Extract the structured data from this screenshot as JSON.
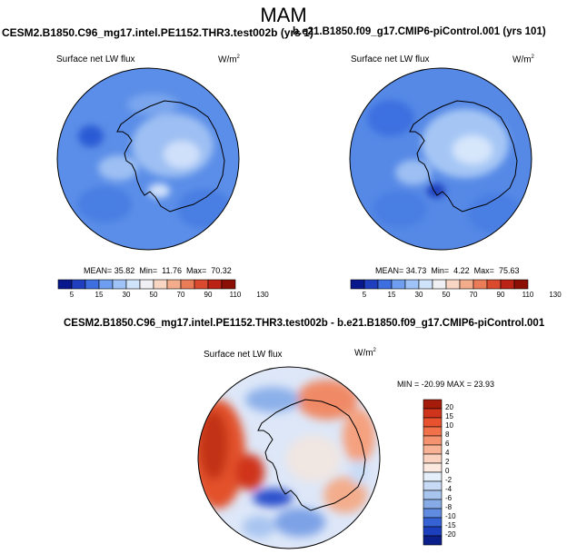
{
  "figure": {
    "season": "MAM",
    "panel_a": {
      "case": "CESM2.B1850.C96_mg17.intel.PE1152.THR3.test002b (yrs 1)",
      "variable": "Surface net LW flux",
      "units_base": "W/m",
      "units_exp": "2",
      "mean_label": "MEAN=",
      "mean": "35.82",
      "min_label": "Min=",
      "min": "11.76",
      "max_label": "Max=",
      "max": "70.32"
    },
    "panel_b": {
      "case": "b.e21.B1850.f09_g17.CMIP6-piControl.001 (yrs 101)",
      "variable": "Surface net LW flux",
      "units_base": "W/m",
      "units_exp": "2",
      "mean_label": "MEAN=",
      "mean": "34.73",
      "min_label": "Min=",
      "min": "4.22",
      "max_label": "Max=",
      "max": "75.63"
    },
    "panel_c": {
      "case": "CESM2.B1850.C96_mg17.intel.PE1152.THR3.test002b - b.e21.B1850.f09_g17.CMIP6-piControl.001",
      "variable": "Surface net LW flux",
      "units_base": "W/m",
      "units_exp": "2",
      "minmax_label": "MIN = -20.99 MAX = 23.93"
    },
    "colorbar_abs": {
      "levels": [
        "5",
        "15",
        "30",
        "50",
        "70",
        "90",
        "110",
        "130"
      ],
      "colors": [
        "#08188c",
        "#1f3fbf",
        "#3e6fe0",
        "#6f9ef0",
        "#9fc3f7",
        "#cfe3fb",
        "#f0f0f4",
        "#f8d6c3",
        "#f3ad8c",
        "#ea7c57",
        "#d94a2e",
        "#bb2414",
        "#8c0f05"
      ]
    },
    "colorbar_diff": {
      "levels": [
        "20",
        "15",
        "10",
        "8",
        "6",
        "4",
        "2",
        "0",
        "-2",
        "-4",
        "-6",
        "-8",
        "-10",
        "-15",
        "-20"
      ],
      "colors": [
        "#a51c0a",
        "#d0341c",
        "#e8522e",
        "#f1714b",
        "#f59370",
        "#f8b396",
        "#fad2bf",
        "#fbe9df",
        "#e5eefb",
        "#c8dbf6",
        "#a8c5f0",
        "#86abe7",
        "#5f8be0",
        "#3563d6",
        "#1c3fbd",
        "#0b1f8a"
      ]
    }
  }
}
